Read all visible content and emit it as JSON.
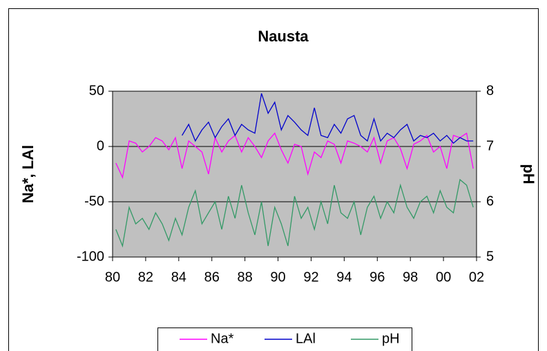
{
  "chart_data": {
    "type": "line",
    "title": "Nausta",
    "ylabel": "Na*, LAl",
    "y2label": "pH",
    "xlim": [
      80,
      102
    ],
    "xticks": [
      80,
      82,
      84,
      86,
      88,
      90,
      92,
      94,
      96,
      98,
      {
        "value": 100,
        "label": "00"
      },
      {
        "value": 102,
        "label": "02"
      }
    ],
    "ylim": [
      -100,
      50
    ],
    "yticks": [
      -100,
      -50,
      0,
      50
    ],
    "y2lim": [
      5,
      8
    ],
    "y2ticks": [
      5,
      6,
      7,
      8
    ],
    "grid": true,
    "legend": "bottom",
    "series": [
      {
        "name": "Na*",
        "color": "#ff00ff",
        "x": [
          80.2,
          80.6,
          81,
          81.4,
          81.8,
          82.2,
          82.6,
          83,
          83.4,
          83.8,
          84.2,
          84.6,
          85,
          85.4,
          85.8,
          86.2,
          86.6,
          87,
          87.4,
          87.8,
          88.2,
          88.6,
          89,
          89.4,
          89.8,
          90.2,
          90.6,
          91,
          91.4,
          91.8,
          92.2,
          92.6,
          93,
          93.4,
          93.8,
          94.2,
          94.6,
          95,
          95.4,
          95.8,
          96.2,
          96.6,
          97,
          97.4,
          97.8,
          98.2,
          98.6,
          99,
          99.4,
          99.8,
          100.2,
          100.6,
          101,
          101.4,
          101.8
        ],
        "values": [
          -15,
          -28,
          5,
          3,
          -5,
          0,
          8,
          5,
          -3,
          8,
          -20,
          5,
          0,
          -5,
          -25,
          8,
          -5,
          5,
          10,
          -5,
          8,
          0,
          -10,
          5,
          12,
          -3,
          -15,
          2,
          0,
          -25,
          -5,
          -10,
          5,
          2,
          -15,
          5,
          3,
          0,
          -5,
          8,
          -15,
          5,
          8,
          -2,
          -20,
          2,
          5,
          10,
          -5,
          0,
          -20,
          10,
          8,
          12,
          -20
        ]
      },
      {
        "name": "LAl",
        "color": "#0000cc",
        "x": [
          84.2,
          84.6,
          85,
          85.4,
          85.8,
          86.2,
          86.6,
          87,
          87.4,
          87.8,
          88.2,
          88.6,
          89,
          89.4,
          89.8,
          90.2,
          90.6,
          91,
          91.4,
          91.8,
          92.2,
          92.6,
          93,
          93.4,
          93.8,
          94.2,
          94.6,
          95,
          95.4,
          95.8,
          96.2,
          96.6,
          97,
          97.4,
          97.8,
          98.2,
          98.6,
          99,
          99.4,
          99.8,
          100.2,
          100.6,
          101,
          101.4,
          101.8
        ],
        "values": [
          10,
          20,
          5,
          15,
          22,
          8,
          18,
          25,
          10,
          20,
          15,
          12,
          48,
          30,
          40,
          15,
          28,
          22,
          15,
          10,
          35,
          10,
          8,
          20,
          12,
          25,
          28,
          10,
          5,
          25,
          5,
          12,
          8,
          15,
          20,
          5,
          10,
          8,
          12,
          5,
          10,
          3,
          8,
          5,
          5
        ]
      },
      {
        "name": "pH",
        "color": "#339966",
        "axis": "y2",
        "x": [
          80.2,
          80.6,
          81,
          81.4,
          81.8,
          82.2,
          82.6,
          83,
          83.4,
          83.8,
          84.2,
          84.6,
          85,
          85.4,
          85.8,
          86.2,
          86.6,
          87,
          87.4,
          87.8,
          88.2,
          88.6,
          89,
          89.4,
          89.8,
          90.2,
          90.6,
          91,
          91.4,
          91.8,
          92.2,
          92.6,
          93,
          93.4,
          93.8,
          94.2,
          94.6,
          95,
          95.4,
          95.8,
          96.2,
          96.6,
          97,
          97.4,
          97.8,
          98.2,
          98.6,
          99,
          99.4,
          99.8,
          100.2,
          100.6,
          101,
          101.4,
          101.8
        ],
        "values": [
          5.5,
          5.2,
          5.9,
          5.6,
          5.7,
          5.5,
          5.8,
          5.6,
          5.3,
          5.7,
          5.4,
          5.9,
          6.2,
          5.6,
          5.8,
          6.0,
          5.5,
          6.1,
          5.7,
          6.3,
          5.8,
          5.4,
          6.0,
          5.2,
          5.9,
          5.6,
          5.2,
          6.1,
          5.7,
          5.9,
          5.5,
          6.0,
          5.6,
          6.3,
          5.8,
          5.7,
          6.0,
          5.4,
          5.9,
          6.1,
          5.7,
          6.0,
          5.8,
          6.3,
          5.9,
          5.7,
          6.0,
          6.1,
          5.8,
          6.2,
          5.9,
          5.8,
          6.4,
          6.3,
          5.9
        ]
      }
    ]
  }
}
